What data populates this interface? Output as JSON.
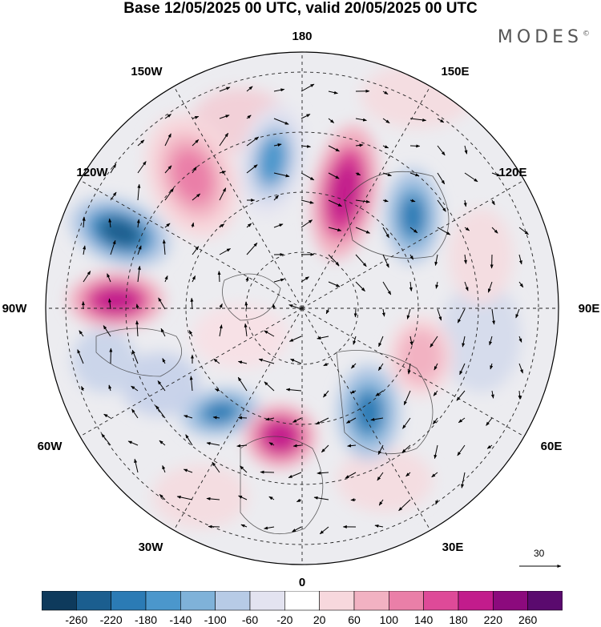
{
  "header": {
    "title": "Base 12/05/2025 00 UTC, valid 20/05/2025 00 UTC",
    "brand": "MODES"
  },
  "map": {
    "projection": "north-polar-stereographic",
    "longitude_labels": {
      "lon_180": "180",
      "lon_150w": "150W",
      "lon_150e": "150E",
      "lon_120w": "120W",
      "lon_120e": "120E",
      "lon_90w": "90W",
      "lon_90e": "90E",
      "lon_60w": "60W",
      "lon_60e": "60E",
      "lon_30w": "30W",
      "lon_30e": "30E",
      "lon_0": "0"
    },
    "reference_vector_label": "30",
    "palette": [
      "#0e3a5c",
      "#1b5e8f",
      "#2b7bb5",
      "#4b97cc",
      "#7fb2d9",
      "#b7cbe6",
      "#e3e3f0",
      "#ffffff",
      "#f7d8dd",
      "#f2b2c2",
      "#ea7fa8",
      "#de4a98",
      "#c21c8c",
      "#8c0a7d",
      "#5a0a6e"
    ],
    "anomalies": [
      {
        "name": "ne-pacific-high",
        "value": 140
      },
      {
        "name": "n-pacific-low",
        "value": -140
      },
      {
        "name": "bering-high",
        "value": 220
      },
      {
        "name": "alaska-low",
        "value": -220
      },
      {
        "name": "e-siberia-low",
        "value": -180
      },
      {
        "name": "hudson-high",
        "value": 220
      },
      {
        "name": "n-atlantic-low",
        "value": -180
      },
      {
        "name": "w-europe-high",
        "value": 220
      },
      {
        "name": "scandinavia-low",
        "value": -180
      },
      {
        "name": "ural-high",
        "value": 100
      }
    ]
  },
  "colorbar": {
    "tick_labels": [
      "-260",
      "-220",
      "-180",
      "-140",
      "-100",
      "-60",
      "-20",
      "20",
      "60",
      "100",
      "140",
      "180",
      "220",
      "260"
    ]
  }
}
